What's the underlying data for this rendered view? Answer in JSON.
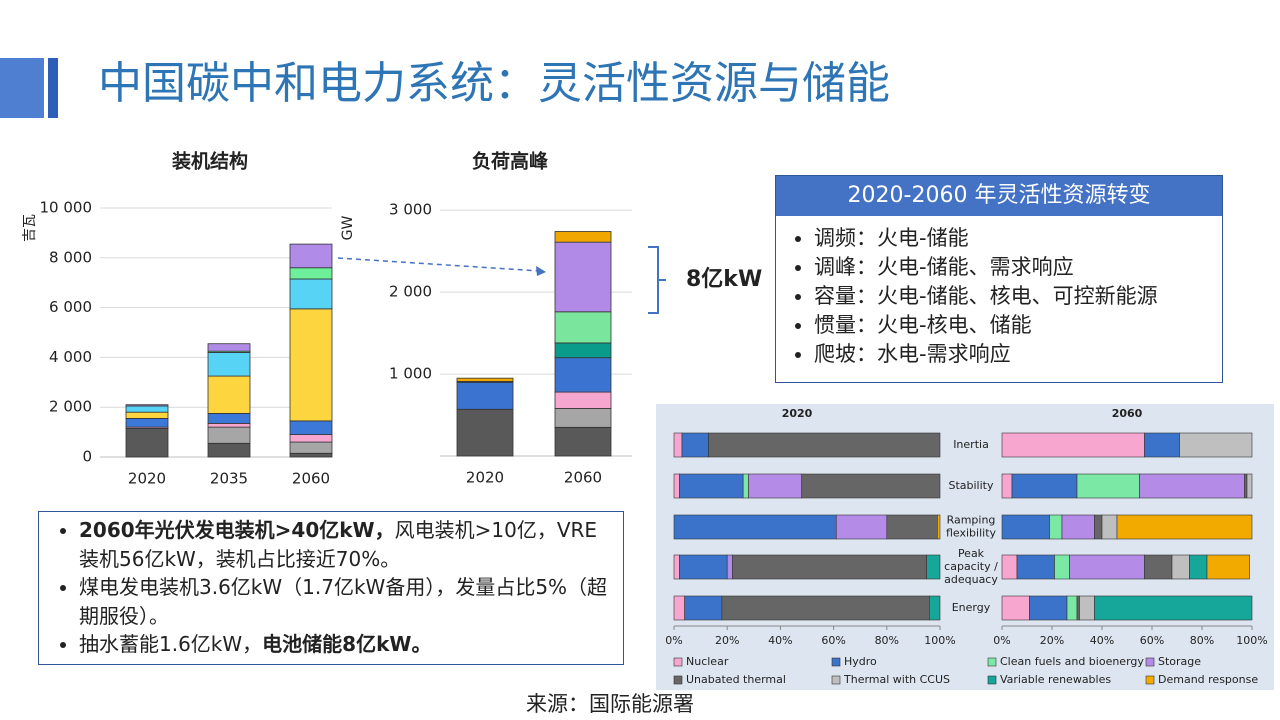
{
  "title": "中国碳中和电力系统：灵活性资源与储能",
  "chart_data": [
    {
      "type": "bar",
      "stacked": true,
      "title": "装机结构",
      "y_label": "吉瓦",
      "categories": [
        "2020",
        "2035",
        "2060"
      ],
      "ylim": [
        0,
        10000
      ],
      "yticks": [
        0,
        {
          "value": 2000,
          "label": "2 000"
        },
        {
          "value": 4000,
          "label": "4 000"
        },
        {
          "value": 6000,
          "label": "6 000"
        },
        {
          "value": 8000,
          "label": "8 000"
        },
        {
          "value": 10000,
          "label": "10 000"
        }
      ],
      "grid": true,
      "series": [
        {
          "color": "#595959",
          "values": [
            1150,
            550,
            150
          ]
        },
        {
          "color": "#a6a6a6",
          "values": [
            0,
            650,
            450
          ]
        },
        {
          "color": "#f7a6cf",
          "values": [
            50,
            150,
            300
          ]
        },
        {
          "color": "#3c78d8",
          "values": [
            350,
            400,
            550
          ]
        },
        {
          "color": "#fcd53f",
          "values": [
            250,
            1500,
            4500
          ]
        },
        {
          "color": "#56d3f5",
          "values": [
            250,
            950,
            1200
          ]
        },
        {
          "color": "#6ef09a",
          "values": [
            0,
            50,
            450
          ]
        },
        {
          "color": "#b18be8",
          "values": [
            50,
            300,
            950
          ]
        }
      ]
    },
    {
      "type": "bar",
      "stacked": true,
      "title": "负荷高峰",
      "y_label": "GW",
      "categories": [
        "2020",
        "2060"
      ],
      "ylim": [
        0,
        3100
      ],
      "yticks": [
        {
          "value": 1000,
          "label": "1 000"
        },
        {
          "value": 2000,
          "label": "2 000"
        },
        {
          "value": 3000,
          "label": "3 000"
        }
      ],
      "grid": true,
      "annotation": "8亿kW",
      "series": [
        {
          "color": "#595959",
          "values": [
            570,
            350
          ]
        },
        {
          "color": "#a6a6a6",
          "values": [
            0,
            230
          ]
        },
        {
          "color": "#f7a6cf",
          "values": [
            0,
            200
          ]
        },
        {
          "color": "#3a73d0",
          "values": [
            330,
            420
          ]
        },
        {
          "color": "#0b9b8a",
          "values": [
            0,
            180
          ]
        },
        {
          "color": "#7ae59c",
          "values": [
            0,
            380
          ]
        },
        {
          "color": "#b08ae6",
          "values": [
            10,
            850
          ]
        },
        {
          "color": "#f0a800",
          "values": [
            40,
            130
          ]
        }
      ]
    },
    {
      "type": "hbar",
      "stacked": true,
      "categories": [
        "Inertia",
        "Stability",
        "Ramping flexibility",
        "Peak capacity / adequacy",
        "Energy"
      ],
      "xlim": [
        0,
        100
      ],
      "xticks": [
        {
          "value": 0,
          "label": "0%"
        },
        {
          "value": 20,
          "label": "20%"
        },
        {
          "value": 40,
          "label": "40%"
        },
        {
          "value": 60,
          "label": "60%"
        },
        {
          "value": 80,
          "label": "80%"
        },
        {
          "value": 100,
          "label": "100%"
        }
      ],
      "series": [
        {
          "name": "Nuclear",
          "color": "#f7a6cf"
        },
        {
          "name": "Hydro",
          "color": "#3a73c9"
        },
        {
          "name": "Clean fuels and bioenergy",
          "color": "#7be8a6"
        },
        {
          "name": "Storage",
          "color": "#b58be8"
        },
        {
          "name": "Unabated thermal",
          "color": "#666666"
        },
        {
          "name": "Thermal with CCUS",
          "color": "#bfbfbf"
        },
        {
          "name": "Variable renewables",
          "color": "#16a79a"
        },
        {
          "name": "Demand response",
          "color": "#f2a900"
        }
      ],
      "panels": [
        {
          "title": "2020",
          "values": [
            [
              3,
              2,
              0,
              2,
              4
            ],
            [
              10,
              24,
              61,
              18,
              14
            ],
            [
              0,
              2,
              0,
              0,
              0
            ],
            [
              0,
              20,
              19,
              2,
              0
            ],
            [
              87,
              52,
              19,
              73,
              78
            ],
            [
              0,
              0,
              0,
              0,
              0
            ],
            [
              0,
              0,
              0,
              5,
              4
            ],
            [
              0,
              0,
              1,
              0,
              0
            ]
          ]
        },
        {
          "title": "2060",
          "values": [
            [
              57,
              4,
              0,
              6,
              11
            ],
            [
              14,
              26,
              19,
              15,
              15
            ],
            [
              0,
              25,
              5,
              6,
              4
            ],
            [
              0,
              42,
              13,
              30,
              0
            ],
            [
              0,
              1,
              3,
              11,
              1
            ],
            [
              29,
              2,
              6,
              7,
              6
            ],
            [
              0,
              0,
              0,
              7,
              63
            ],
            [
              0,
              0,
              54,
              17,
              0
            ]
          ]
        }
      ]
    }
  ],
  "transition_box": {
    "title": "2020-2060 年灵活性资源转变",
    "items": [
      "调频：火电-储能",
      "调峰：火电-储能、需求响应",
      "容量：火电-储能、核电、可控新能源",
      "惯量：火电-核电、储能",
      "爬坡：水电-需求响应"
    ]
  },
  "notes": [
    [
      {
        "text": "2060年光伏发电装机>40亿kW，",
        "bold": true
      },
      {
        "text": "风电装机>10亿，VRE装机56亿kW，装机占比接近70%。",
        "bold": false
      }
    ],
    [
      {
        "text": "煤电发电装机3.6亿kW（1.7亿kW备用），发量占比5%（超期服役）。",
        "bold": false
      }
    ],
    [
      {
        "text": "抽水蓄能1.6亿kW，",
        "bold": false
      },
      {
        "text": "电池储能8亿kW。",
        "bold": true
      }
    ]
  ],
  "source": "来源：国际能源署"
}
